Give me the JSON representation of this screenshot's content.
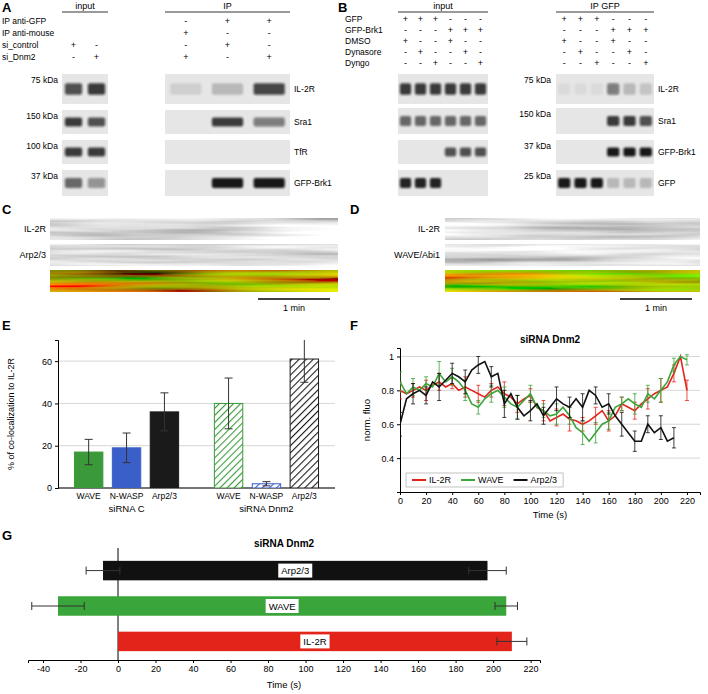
{
  "blots": [
    {
      "panel": "A",
      "groups": [
        {
          "label": "input",
          "lanes": 2
        },
        {
          "label": "IP",
          "lanes": 3
        }
      ],
      "conditions": [
        {
          "label": "IP anti-GFP",
          "signs": [
            null,
            null,
            "-",
            "+",
            "+"
          ]
        },
        {
          "label": "IP anti-mouse",
          "signs": [
            null,
            null,
            "+",
            "-",
            "-"
          ]
        },
        {
          "label": "si_control",
          "signs": [
            "+",
            "-",
            "-",
            "+",
            "-"
          ]
        },
        {
          "label": "si_Dnm2",
          "signs": [
            "-",
            "+",
            "+",
            "-",
            "+"
          ]
        }
      ],
      "rows": [
        {
          "size_label": "75 kDa",
          "label": "IL-2R",
          "bands": [
            0.7,
            0.8,
            0.1,
            0.2,
            0.75
          ]
        },
        {
          "size_label": "150 kDa",
          "label": "Sra1",
          "bands": [
            0.8,
            0.7,
            0.0,
            0.8,
            0.5
          ]
        },
        {
          "size_label": "100 kDa",
          "label": "TfR",
          "bands": [
            0.8,
            0.8,
            0.0,
            0.0,
            0.0
          ]
        },
        {
          "size_label": "37 kDa",
          "label": "GFP-Brk1",
          "bands": [
            0.6,
            0.4,
            0.0,
            0.95,
            0.95
          ]
        }
      ]
    },
    {
      "panel": "B",
      "groups": [
        {
          "label": "input",
          "lanes": 6
        },
        {
          "label": "IP GFP",
          "lanes": 6
        }
      ],
      "conditions": [
        {
          "label": "GFP",
          "signs": [
            "+",
            "+",
            "+",
            "-",
            "-",
            "-",
            "+",
            "+",
            "+",
            "-",
            "-",
            "-"
          ]
        },
        {
          "label": "GFP-Brk1",
          "signs": [
            "-",
            "-",
            "-",
            "+",
            "+",
            "+",
            "-",
            "-",
            "-",
            "+",
            "+",
            "+"
          ]
        },
        {
          "label": "DMSO",
          "signs": [
            "+",
            "-",
            "-",
            "+",
            "-",
            "-",
            "+",
            "-",
            "-",
            "+",
            "-",
            "-"
          ]
        },
        {
          "label": "Dynasore",
          "signs": [
            "-",
            "+",
            "-",
            "-",
            "+",
            "-",
            "-",
            "+",
            "-",
            "-",
            "+",
            "-"
          ]
        },
        {
          "label": "Dyngo",
          "signs": [
            "-",
            "-",
            "+",
            "-",
            "-",
            "+",
            "-",
            "-",
            "+",
            "-",
            "-",
            "+"
          ]
        }
      ],
      "rows": [
        {
          "size_label": "75 kDa",
          "label": "IL-2R",
          "bands": [
            0.8,
            0.8,
            0.8,
            0.8,
            0.8,
            0.8,
            0.05,
            0.05,
            0.05,
            0.5,
            0.2,
            0.15
          ]
        },
        {
          "size_label": "150 kDa",
          "label": "Sra1",
          "bands": [
            0.6,
            0.6,
            0.6,
            0.6,
            0.6,
            0.6,
            0.0,
            0.0,
            0.0,
            0.8,
            0.8,
            0.7
          ]
        },
        {
          "size_label": "37 kDa",
          "label": "GFP-Brk1",
          "bands": [
            0.0,
            0.0,
            0.0,
            0.7,
            0.7,
            0.7,
            0.0,
            0.0,
            0.0,
            0.95,
            0.95,
            0.95
          ]
        },
        {
          "size_label": "25 kDa",
          "label": "GFP",
          "bands": [
            0.9,
            0.9,
            0.9,
            0.0,
            0.0,
            0.0,
            0.95,
            0.95,
            0.95,
            0.2,
            0.2,
            0.2
          ]
        }
      ]
    }
  ],
  "kymographs": [
    {
      "panel": "C",
      "channels": [
        "IL-2R",
        "Arp2/3"
      ],
      "scale_bar": "1 min"
    },
    {
      "panel": "D",
      "channels": [
        "IL-2R",
        "WAVE/Abi1"
      ],
      "scale_bar": "1 min"
    }
  ],
  "chart_data": [
    {
      "panel": "E",
      "type": "bar",
      "ylabel": "% of co-localization to IL-2R",
      "categories": [
        "WAVE",
        "N-WASP",
        "Arp2/3"
      ],
      "colors": [
        "#3a9a3a",
        "#3b5fc9",
        "#1a1a1a"
      ],
      "ylim": [
        0,
        70
      ],
      "yticks": [
        0,
        20,
        40,
        60
      ],
      "grid": true,
      "series": [
        {
          "name": "siRNA C",
          "values": [
            17,
            19,
            36
          ],
          "errors": [
            6,
            7,
            9
          ]
        },
        {
          "name": "siRNA Dnm2",
          "values": [
            40,
            2,
            61
          ],
          "errors": [
            12,
            1,
            11
          ]
        }
      ]
    },
    {
      "panel": "F",
      "type": "line",
      "title": "siRNA Dnm2",
      "xlabel": "Time (s)",
      "ylabel": "norm. fluo",
      "x": [
        0,
        5,
        10,
        15,
        20,
        25,
        30,
        35,
        40,
        45,
        50,
        55,
        60,
        65,
        70,
        75,
        80,
        85,
        90,
        95,
        100,
        105,
        110,
        115,
        120,
        125,
        130,
        135,
        140,
        145,
        150,
        155,
        160,
        165,
        170,
        175,
        180,
        185,
        190,
        195,
        200,
        205,
        210,
        215,
        220
      ],
      "xlim": [
        0,
        230
      ],
      "xticks": [
        0,
        20,
        40,
        60,
        80,
        100,
        120,
        140,
        160,
        180,
        200,
        220
      ],
      "ylim": [
        0.2,
        1.05
      ],
      "yticks": [
        0.4,
        0.6,
        0.8,
        1
      ],
      "grid": true,
      "legend": "bottom-left",
      "series": [
        {
          "name": "IL-2R",
          "color": "#e3241b",
          "values": [
            0.8,
            0.78,
            0.8,
            0.82,
            0.8,
            0.83,
            0.85,
            0.82,
            0.84,
            0.8,
            0.82,
            0.8,
            0.78,
            0.76,
            0.8,
            0.82,
            0.78,
            0.76,
            0.72,
            0.75,
            0.77,
            0.7,
            0.68,
            0.62,
            0.64,
            0.66,
            0.63,
            0.62,
            0.6,
            0.62,
            0.65,
            0.68,
            0.62,
            0.65,
            0.72,
            0.7,
            0.68,
            0.72,
            0.75,
            0.78,
            0.8,
            0.82,
            0.9,
            1.0,
            0.8
          ],
          "errors": [
            0.05,
            null,
            0.04,
            null,
            0.06,
            null,
            0.05,
            null,
            0.03,
            null,
            0.06,
            null,
            0.05,
            null,
            0.04,
            null,
            0.07,
            null,
            0.05,
            null,
            0.04,
            null,
            0.06,
            null,
            0.05,
            null,
            0.07,
            null,
            0.04,
            null,
            0.05,
            null,
            0.06,
            null,
            0.04,
            null,
            0.05,
            null,
            0.06,
            null,
            0.07,
            null,
            0.05,
            null,
            0.06
          ]
        },
        {
          "name": "WAVE",
          "color": "#3aa53a",
          "values": [
            0.85,
            0.78,
            0.82,
            0.8,
            0.84,
            0.82,
            0.9,
            0.85,
            0.88,
            0.85,
            0.8,
            0.72,
            0.7,
            0.75,
            0.78,
            0.8,
            0.76,
            0.72,
            0.7,
            0.74,
            0.78,
            0.7,
            0.68,
            0.65,
            0.66,
            0.7,
            0.65,
            0.58,
            0.55,
            0.5,
            0.55,
            0.6,
            0.62,
            0.7,
            0.72,
            0.75,
            0.72,
            0.7,
            0.78,
            0.75,
            0.8,
            0.85,
            0.95,
            1.0,
            0.98
          ],
          "errors": [
            0.06,
            null,
            0.05,
            null,
            0.04,
            null,
            0.07,
            null,
            0.05,
            null,
            0.06,
            null,
            0.04,
            null,
            0.05,
            null,
            0.06,
            null,
            0.07,
            null,
            0.05,
            null,
            0.04,
            null,
            0.06,
            null,
            0.05,
            null,
            0.07,
            null,
            0.06,
            null,
            0.05,
            null,
            0.04,
            null,
            0.06,
            null,
            0.05,
            null,
            0.07,
            null,
            0.04,
            null,
            0.03
          ]
        },
        {
          "name": "Arp2/3",
          "color": "#111111",
          "values": [
            0.6,
            0.75,
            0.78,
            0.8,
            0.77,
            0.85,
            0.82,
            0.86,
            0.9,
            0.88,
            0.85,
            0.92,
            0.95,
            0.97,
            0.88,
            0.9,
            0.72,
            0.78,
            0.7,
            0.65,
            0.68,
            0.72,
            0.65,
            0.7,
            0.75,
            0.72,
            0.7,
            0.75,
            0.7,
            0.8,
            0.77,
            0.7,
            0.72,
            0.65,
            0.6,
            0.55,
            0.5,
            0.5,
            0.6,
            0.55,
            0.58,
            0.5,
            0.52,
            null,
            null
          ],
          "errors": [
            0.07,
            null,
            0.06,
            null,
            0.05,
            null,
            0.08,
            null,
            0.06,
            null,
            0.07,
            null,
            0.05,
            null,
            0.06,
            null,
            0.08,
            null,
            0.07,
            null,
            0.06,
            null,
            0.05,
            null,
            0.07,
            null,
            0.06,
            null,
            0.08,
            null,
            0.05,
            null,
            0.06,
            null,
            0.07,
            null,
            0.06,
            null,
            0.05,
            null,
            0.07,
            null,
            0.06,
            null,
            null
          ]
        }
      ]
    },
    {
      "panel": "G",
      "type": "bar",
      "orientation": "horizontal",
      "title": "siRNA Dnm2",
      "xlabel": "Time (s)",
      "categories": [
        "Arp2/3",
        "WAVE",
        "IL-2R"
      ],
      "colors": [
        "#111111",
        "#3aa53a",
        "#e3241b"
      ],
      "starts": [
        -8,
        -32,
        0
      ],
      "ends": [
        197,
        207,
        210
      ],
      "start_errors": [
        9,
        14,
        null
      ],
      "end_errors": [
        10,
        6,
        8
      ],
      "reference_x": 0,
      "xlim": [
        -48,
        225
      ],
      "xticks": [
        -40,
        -20,
        0,
        20,
        40,
        60,
        80,
        100,
        120,
        140,
        160,
        180,
        200,
        220
      ]
    }
  ]
}
